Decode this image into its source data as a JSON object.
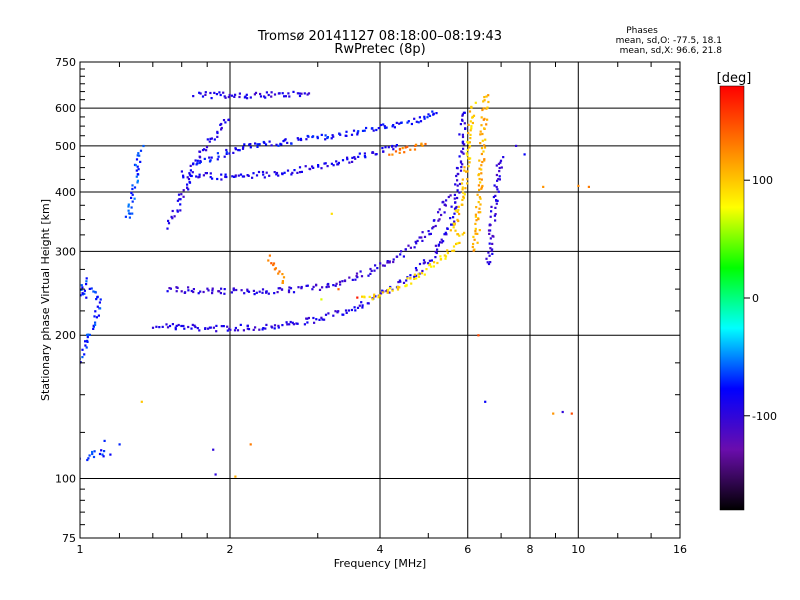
{
  "chart_data": {
    "type": "scatter",
    "title_line1": "Tromsø 20141127 08:18:00–08:19:43",
    "title_line2": "RwPretec (8p)",
    "phases_header": "Phases",
    "stats_o": "mean, sd,O:  -77.5, 18.1",
    "stats_x": "mean, sd,X:  96.6, 21.8",
    "xlabel": "Frequency [MHz]",
    "ylabel": "Stationary phase Virtual Height [km]",
    "x_scale": "log",
    "y_scale": "log",
    "xlim": [
      1,
      16
    ],
    "ylim": [
      75,
      750
    ],
    "x_ticks": [
      1,
      2,
      4,
      6,
      8,
      10,
      16
    ],
    "x_tick_labels": [
      "1",
      "2",
      "4",
      "6",
      "8",
      "10",
      "16"
    ],
    "y_ticks": [
      75,
      100,
      200,
      300,
      400,
      500,
      600,
      750
    ],
    "y_tick_labels": [
      "75",
      "100",
      "200",
      "300",
      "400",
      "500",
      "600",
      "750"
    ],
    "x_grid": [
      1,
      2,
      4,
      6,
      8,
      10,
      16
    ],
    "y_grid": [
      100,
      200,
      300,
      400,
      500,
      600
    ],
    "grid": true,
    "colorbar": {
      "label": "[deg]",
      "range": [
        -180,
        180
      ],
      "ticks": [
        100,
        0,
        -100
      ],
      "tick_labels": [
        "100",
        "0",
        "-100"
      ],
      "stops": [
        "#000000",
        "#6a0dad",
        "#0000ff",
        "#00ffff",
        "#00ff00",
        "#ffff00",
        "#ff7f00",
        "#ff0000"
      ]
    },
    "traces": [
      {
        "phase": -95,
        "points": [
          [
            1.42,
            210
          ],
          [
            1.6,
            208
          ],
          [
            1.8,
            207
          ],
          [
            2.0,
            207
          ],
          [
            2.3,
            208
          ],
          [
            2.6,
            211
          ],
          [
            3.0,
            216
          ],
          [
            3.4,
            224
          ],
          [
            3.8,
            236
          ],
          [
            4.2,
            250
          ],
          [
            4.6,
            266
          ],
          [
            5.0,
            286
          ],
          [
            5.3,
            310
          ],
          [
            5.55,
            345
          ],
          [
            5.7,
            400
          ],
          [
            5.8,
            470
          ],
          [
            5.85,
            540
          ],
          [
            5.9,
            600
          ]
        ]
      },
      {
        "phase": -100,
        "points": [
          [
            1.5,
            250
          ],
          [
            1.8,
            248
          ],
          [
            2.1,
            247
          ],
          [
            2.5,
            248
          ],
          [
            3.0,
            252
          ],
          [
            3.5,
            262
          ],
          [
            4.0,
            278
          ],
          [
            4.5,
            300
          ],
          [
            5.0,
            330
          ],
          [
            5.3,
            360
          ],
          [
            5.5,
            400
          ]
        ]
      },
      {
        "phase": -90,
        "points": [
          [
            1.6,
            436
          ],
          [
            2.0,
            430
          ],
          [
            2.4,
            436
          ],
          [
            2.8,
            446
          ],
          [
            3.2,
            458
          ],
          [
            3.6,
            472
          ],
          [
            4.0,
            488
          ],
          [
            4.4,
            500
          ]
        ]
      },
      {
        "phase": -80,
        "points": [
          [
            1.7,
            460
          ],
          [
            2.2,
            500
          ],
          [
            2.6,
            510
          ],
          [
            3.0,
            520
          ],
          [
            3.5,
            532
          ],
          [
            4.0,
            548
          ],
          [
            4.5,
            560
          ],
          [
            5.0,
            575
          ],
          [
            5.3,
            590
          ]
        ]
      },
      {
        "phase": -95,
        "points": [
          [
            1.7,
            640
          ],
          [
            2.0,
            638
          ],
          [
            2.3,
            638
          ],
          [
            2.6,
            642
          ],
          [
            2.9,
            648
          ]
        ]
      },
      {
        "phase": -70,
        "points": [
          [
            1.0,
            110
          ],
          [
            1.05,
            112
          ],
          [
            1.1,
            114
          ],
          [
            1.15,
            112
          ]
        ]
      },
      {
        "phase": -70,
        "points": [
          [
            1.0,
            175
          ],
          [
            1.02,
            190
          ],
          [
            1.05,
            205
          ],
          [
            1.08,
            220
          ],
          [
            1.1,
            235
          ],
          [
            1.05,
            250
          ],
          [
            1.0,
            240
          ],
          [
            1.03,
            265
          ]
        ]
      },
      {
        "phase": -65,
        "points": [
          [
            1.25,
            350
          ],
          [
            1.28,
            400
          ],
          [
            1.3,
            450
          ],
          [
            1.33,
            500
          ]
        ]
      },
      {
        "phase": 90,
        "points": [
          [
            3.7,
            238
          ],
          [
            4.0,
            242
          ],
          [
            4.4,
            252
          ],
          [
            4.8,
            268
          ],
          [
            5.2,
            285
          ],
          [
            5.6,
            305
          ],
          [
            5.9,
            335
          ]
        ]
      },
      {
        "phase": 100,
        "points": [
          [
            5.6,
            330
          ],
          [
            5.8,
            380
          ],
          [
            5.95,
            440
          ],
          [
            6.05,
            500
          ],
          [
            6.1,
            560
          ],
          [
            6.15,
            620
          ]
        ]
      },
      {
        "phase": 110,
        "points": [
          [
            6.2,
            300
          ],
          [
            6.3,
            360
          ],
          [
            6.35,
            420
          ],
          [
            6.4,
            480
          ],
          [
            6.45,
            540
          ],
          [
            6.5,
            600
          ],
          [
            6.55,
            650
          ]
        ]
      },
      {
        "phase": 130,
        "points": [
          [
            2.4,
            290
          ],
          [
            2.45,
            280
          ],
          [
            2.5,
            270
          ],
          [
            2.55,
            262
          ],
          [
            2.6,
            258
          ]
        ]
      },
      {
        "phase": 130,
        "points": [
          [
            4.2,
            480
          ],
          [
            4.5,
            490
          ],
          [
            4.8,
            500
          ],
          [
            5.0,
            510
          ]
        ]
      },
      {
        "phase": -95,
        "points": [
          [
            1.5,
            340
          ],
          [
            1.55,
            360
          ],
          [
            1.6,
            390
          ],
          [
            1.65,
            420
          ],
          [
            1.7,
            460
          ],
          [
            1.8,
            500
          ],
          [
            1.9,
            540
          ],
          [
            2.0,
            580
          ]
        ]
      },
      {
        "phase": -100,
        "points": [
          [
            6.6,
            280
          ],
          [
            6.7,
            330
          ],
          [
            6.8,
            380
          ],
          [
            6.9,
            430
          ],
          [
            7.0,
            480
          ]
        ]
      }
    ],
    "scatter_points": [
      [
        8.5,
        410,
        120
      ],
      [
        10.0,
        412,
        125
      ],
      [
        10.5,
        410,
        130
      ],
      [
        9.3,
        138,
        -100
      ],
      [
        8.9,
        137,
        120
      ],
      [
        9.7,
        137,
        150
      ],
      [
        1.85,
        115,
        -100
      ],
      [
        1.87,
        102,
        -100
      ],
      [
        2.2,
        118,
        130
      ],
      [
        1.33,
        145,
        100
      ],
      [
        6.3,
        200,
        150
      ],
      [
        6.5,
        145,
        -80
      ],
      [
        3.2,
        360,
        90
      ],
      [
        3.3,
        250,
        140
      ],
      [
        3.6,
        240,
        170
      ],
      [
        1.12,
        120,
        -70
      ],
      [
        1.2,
        118,
        -70
      ],
      [
        2.05,
        101,
        110
      ],
      [
        3.05,
        238,
        70
      ],
      [
        7.5,
        500,
        -100
      ],
      [
        7.8,
        480,
        -80
      ]
    ]
  }
}
